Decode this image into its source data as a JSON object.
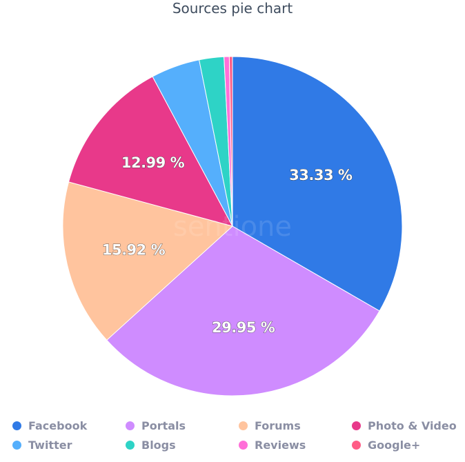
{
  "chart_data": {
    "type": "pie",
    "title": "Sources pie chart",
    "start_angle": "top, clockwise",
    "legend_position": "bottom",
    "slices": [
      {
        "name": "Facebook",
        "value": 33.33,
        "label": "33.33 %",
        "color": "#307ae6"
      },
      {
        "name": "Portals",
        "value": 29.95,
        "label": "29.95 %",
        "color": "#cf8cff"
      },
      {
        "name": "Forums",
        "value": 15.92,
        "label": "15.92 %",
        "color": "#ffc49e"
      },
      {
        "name": "Photo & Video",
        "value": 12.99,
        "label": "12.99 %",
        "color": "#e8398a"
      },
      {
        "name": "Twitter",
        "value": 4.66,
        "label": "",
        "color": "#55affc"
      },
      {
        "name": "Blogs",
        "value": 2.35,
        "label": "",
        "color": "#2ed3c6"
      },
      {
        "name": "Reviews",
        "value": 0.5,
        "label": "",
        "color": "#ff6fd8"
      },
      {
        "name": "Google+",
        "value": 0.3,
        "label": "",
        "color": "#ff5c86"
      }
    ]
  },
  "watermark": "sentione"
}
